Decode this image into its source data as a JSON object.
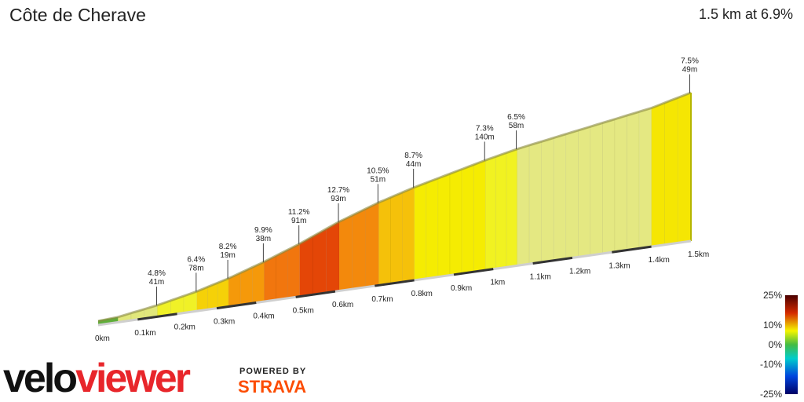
{
  "header": {
    "title": "Côte de Cherave",
    "summary": "1.5 km at 6.9%"
  },
  "branding": {
    "logo_part1": "velo",
    "logo_part2": "viewer",
    "powered_by": "POWERED BY",
    "strava": "STRAVA"
  },
  "chart_data": {
    "type": "area",
    "segments": [
      {
        "start": 0.0,
        "end": 0.05,
        "grade": 2.0
      },
      {
        "start": 0.05,
        "end": 0.15,
        "grade": 4.8,
        "label": "4.8%",
        "sub": "41m"
      },
      {
        "start": 0.15,
        "end": 0.25,
        "grade": 6.4,
        "label": "6.4%",
        "sub": "78m"
      },
      {
        "start": 0.25,
        "end": 0.33,
        "grade": 8.2,
        "label": "8.2%",
        "sub": "19m"
      },
      {
        "start": 0.33,
        "end": 0.42,
        "grade": 9.9,
        "label": "9.9%",
        "sub": "38m"
      },
      {
        "start": 0.42,
        "end": 0.51,
        "grade": 11.2,
        "label": "11.2%",
        "sub": "91m"
      },
      {
        "start": 0.51,
        "end": 0.61,
        "grade": 12.7,
        "label": "12.7%",
        "sub": "93m"
      },
      {
        "start": 0.61,
        "end": 0.71,
        "grade": 10.5,
        "label": "10.5%",
        "sub": "51m"
      },
      {
        "start": 0.71,
        "end": 0.8,
        "grade": 8.7,
        "label": "8.7%",
        "sub": "44m"
      },
      {
        "start": 0.8,
        "end": 0.98,
        "grade": 7.3,
        "label": "7.3%",
        "sub": "140m"
      },
      {
        "start": 0.98,
        "end": 1.06,
        "grade": 6.5,
        "label": "6.5%",
        "sub": "58m"
      },
      {
        "start": 1.06,
        "end": 1.4,
        "grade": 5.0
      },
      {
        "start": 1.4,
        "end": 1.5,
        "grade": 7.5,
        "label": "7.5%",
        "sub": "49m"
      }
    ],
    "x_ticks": [
      "0km",
      "0.1km",
      "0.2km",
      "0.3km",
      "0.4km",
      "0.5km",
      "0.6km",
      "0.7km",
      "0.8km",
      "0.9km",
      "1km",
      "1.1km",
      "1.2km",
      "1.3km",
      "1.4km",
      "1.5km"
    ],
    "x_range": [
      0,
      1.5
    ],
    "legend": {
      "labels": [
        "25%",
        "10%",
        "0%",
        "-10%",
        "-25%"
      ],
      "values": [
        25,
        10,
        0,
        -10,
        -25
      ],
      "placement": "bottom-right"
    }
  },
  "colors": {
    "grade_low": "#66bb44",
    "grade_mid": "#f5f500",
    "grade_high": "#d42a00",
    "strava_orange": "#fc4c02",
    "viewer_red": "#e8262b"
  }
}
